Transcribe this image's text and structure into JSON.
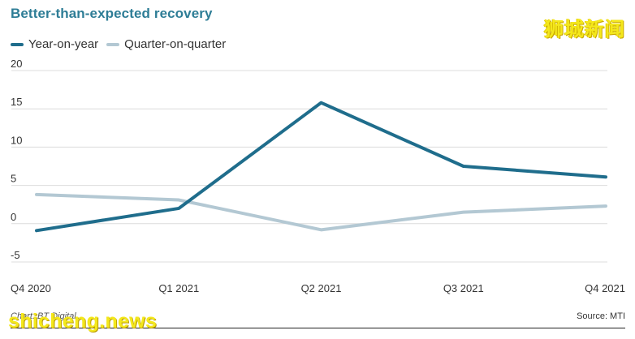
{
  "chart_data": {
    "type": "line",
    "title": "Better-than-expected recovery",
    "categories": [
      "Q4 2020",
      "Q1 2021",
      "Q2 2021",
      "Q3 2021",
      "Q4 2021"
    ],
    "series": [
      {
        "name": "Year-on-year",
        "values": [
          -0.9,
          2.0,
          15.8,
          7.5,
          6.1
        ],
        "color": "#1f6d8c"
      },
      {
        "name": "Quarter-on-quarter",
        "values": [
          3.8,
          3.1,
          -0.8,
          1.5,
          2.3
        ],
        "color": "#b3c8d3"
      }
    ],
    "ylim": [
      -5,
      20
    ],
    "yticks": [
      -5,
      0,
      5,
      10,
      15,
      20
    ],
    "grid": true,
    "legend_position": "top-left",
    "credit": "Chart: BT Digital",
    "source": "Source: MTI"
  },
  "watermarks": {
    "top_right": "狮城新闻",
    "bottom_left": "shicheng.news"
  }
}
